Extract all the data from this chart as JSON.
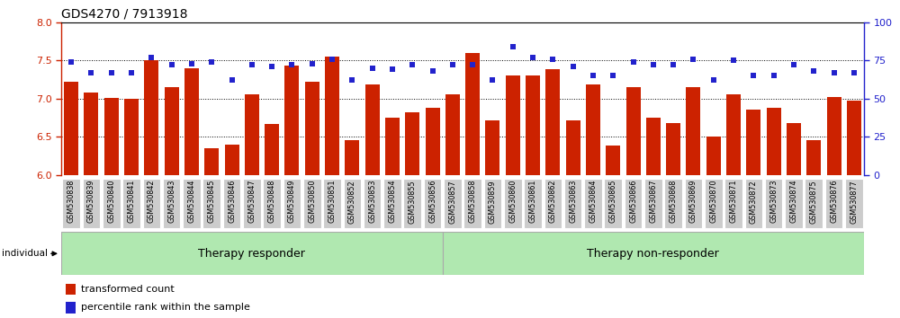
{
  "title": "GDS4270 / 7913918",
  "ylim_left": [
    6.0,
    8.0
  ],
  "ylim_right": [
    0,
    100
  ],
  "yticks_left": [
    6.0,
    6.5,
    7.0,
    7.5,
    8.0
  ],
  "yticks_right": [
    0,
    25,
    50,
    75,
    100
  ],
  "bar_color": "#cc2200",
  "dot_color": "#2222cc",
  "samples": [
    "GSM530838",
    "GSM530839",
    "GSM530840",
    "GSM530841",
    "GSM530842",
    "GSM530843",
    "GSM530844",
    "GSM530845",
    "GSM530846",
    "GSM530847",
    "GSM530848",
    "GSM530849",
    "GSM530850",
    "GSM530851",
    "GSM530852",
    "GSM530853",
    "GSM530854",
    "GSM530855",
    "GSM530856",
    "GSM530857",
    "GSM530858",
    "GSM530859",
    "GSM530860",
    "GSM530861",
    "GSM530862",
    "GSM530863",
    "GSM530864",
    "GSM530865",
    "GSM530866",
    "GSM530867",
    "GSM530868",
    "GSM530869",
    "GSM530870",
    "GSM530871",
    "GSM530872",
    "GSM530873",
    "GSM530874",
    "GSM530875",
    "GSM530876",
    "GSM530877"
  ],
  "bar_values": [
    7.22,
    7.08,
    7.01,
    7.0,
    7.5,
    7.15,
    7.4,
    6.35,
    6.4,
    7.05,
    6.67,
    7.43,
    7.22,
    7.55,
    6.45,
    7.18,
    6.75,
    6.82,
    6.88,
    7.05,
    7.6,
    6.72,
    7.3,
    7.3,
    7.38,
    6.72,
    7.18,
    6.38,
    7.15,
    6.75,
    6.68,
    7.15,
    6.5,
    7.05,
    6.85,
    6.88,
    6.68,
    6.45,
    7.02,
    6.97
  ],
  "dot_values": [
    74,
    67,
    67,
    67,
    77,
    72,
    73,
    74,
    62,
    72,
    71,
    72,
    73,
    76,
    62,
    70,
    69,
    72,
    68,
    72,
    72,
    62,
    84,
    77,
    76,
    71,
    65,
    65,
    74,
    72,
    72,
    76,
    62,
    75,
    65,
    65,
    72,
    68,
    67,
    67
  ],
  "n_responder": 19,
  "n_total": 40,
  "responder_label": "Therapy responder",
  "nonresponder_label": "Therapy non-responder",
  "group_color": "#b0e8b0",
  "group_border_color": "#aaaaaa",
  "tick_bg_color": "#cccccc",
  "tick_border_color": "#aaaaaa",
  "legend_bar_label": "transformed count",
  "legend_dot_label": "percentile rank within the sample",
  "individual_label": "individual",
  "left_axis_color": "#cc2200",
  "right_axis_color": "#2222cc",
  "title_color": "#000000",
  "bg_color": "#ffffff",
  "grid_color": "#000000",
  "grid_style": "dotted",
  "grid_lw": 0.7
}
